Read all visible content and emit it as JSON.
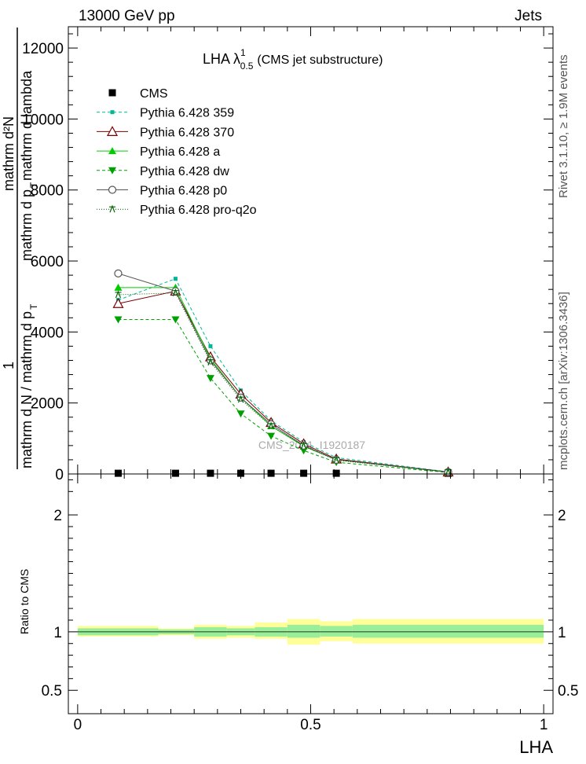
{
  "header": {
    "left": "13000 GeV pp",
    "right": "Jets"
  },
  "side_labels": {
    "rivet": "Rivet 3.1.10, ≥ 1.9M events",
    "mcplots": "mcplots.cern.ch [arXiv:1306.3436]"
  },
  "watermark": "CMS_2021_I1920187",
  "chart_data": [
    {
      "type": "line",
      "title_main": "LHA λ",
      "title_sup": "1",
      "title_sub": "0.5",
      "title_rest": "(CMS jet substructure)",
      "ylabel_parts": {
        "numerator_1": "mathrm d²N",
        "numerator_2": "mathrm d p",
        "numerator_2_sub": "T",
        "numerator_3": "mathrm d lambda",
        "denominator_1": "1",
        "denominator_2": "mathrm d N / mathrm d p",
        "denominator_2_sub": "T"
      },
      "xlabel": "LHA",
      "xlim": [
        -0.02,
        1.02
      ],
      "ylim": [
        0,
        12600
      ],
      "y_ticks": [
        0,
        2000,
        4000,
        6000,
        8000,
        10000,
        12000
      ],
      "y_tick_labels": [
        "0",
        "2000",
        "4000",
        "6000",
        "8000",
        "10000",
        "12000"
      ],
      "x_ticks": [
        0,
        0.5,
        1
      ],
      "x_tick_labels": [
        "0",
        "0.5",
        "1"
      ],
      "x": [
        0.087,
        0.21,
        0.285,
        0.35,
        0.415,
        0.485,
        0.555,
        0.795
      ],
      "series": [
        {
          "name": "CMS",
          "marker": "square-filled",
          "color": "#000000",
          "dash": "none",
          "values": [
            20,
            20,
            20,
            20,
            20,
            20,
            20,
            20
          ]
        },
        {
          "name": "Pythia 6.428 359",
          "marker": "square-small",
          "color": "#00b894",
          "dash": "4,3",
          "values": [
            4900,
            5500,
            3600,
            2350,
            1500,
            900,
            460,
            60
          ]
        },
        {
          "name": "Pythia 6.428 370",
          "marker": "triangle-up-open",
          "color": "#7a0000",
          "dash": "none",
          "values": [
            4800,
            5150,
            3300,
            2250,
            1450,
            850,
            420,
            55
          ]
        },
        {
          "name": "Pythia 6.428 a",
          "marker": "triangle-up-filled",
          "color": "#00cc00",
          "dash": "none",
          "values": [
            5250,
            5250,
            3250,
            2150,
            1350,
            780,
            400,
            50
          ]
        },
        {
          "name": "Pythia 6.428 dw",
          "marker": "triangle-down-filled",
          "color": "#00a000",
          "dash": "4,3",
          "values": [
            4350,
            4350,
            2700,
            1700,
            1070,
            660,
            330,
            40
          ]
        },
        {
          "name": "Pythia 6.428 p0",
          "marker": "circle-open",
          "color": "#555555",
          "dash": "none",
          "values": [
            5650,
            5150,
            3200,
            2150,
            1400,
            800,
            400,
            55
          ]
        },
        {
          "name": "Pythia 6.428 pro-q2o",
          "marker": "star",
          "color": "#006400",
          "dash": "1,2",
          "values": [
            5050,
            5100,
            3150,
            2100,
            1350,
            790,
            390,
            50
          ]
        }
      ]
    },
    {
      "type": "area",
      "ylabel": "Ratio to CMS",
      "ylim": [
        0.3,
        2.35
      ],
      "y_ticks": [
        0.5,
        1,
        2
      ],
      "y_tick_labels": [
        "0.5",
        "1",
        "2"
      ],
      "bins": [
        {
          "lo": 0.0,
          "hi": 0.173,
          "inner": [
            0.97,
            1.03
          ],
          "outer": [
            0.96,
            1.05
          ]
        },
        {
          "lo": 0.173,
          "hi": 0.25,
          "inner": [
            0.98,
            1.02
          ],
          "outer": [
            0.97,
            1.03
          ]
        },
        {
          "lo": 0.25,
          "hi": 0.32,
          "inner": [
            0.96,
            1.04
          ],
          "outer": [
            0.94,
            1.06
          ]
        },
        {
          "lo": 0.32,
          "hi": 0.38,
          "inner": [
            0.97,
            1.03
          ],
          "outer": [
            0.95,
            1.05
          ]
        },
        {
          "lo": 0.38,
          "hi": 0.45,
          "inner": [
            0.96,
            1.04
          ],
          "outer": [
            0.94,
            1.08
          ]
        },
        {
          "lo": 0.45,
          "hi": 0.52,
          "inner": [
            0.95,
            1.06
          ],
          "outer": [
            0.89,
            1.11
          ]
        },
        {
          "lo": 0.52,
          "hi": 0.59,
          "inner": [
            0.96,
            1.05
          ],
          "outer": [
            0.92,
            1.09
          ]
        },
        {
          "lo": 0.59,
          "hi": 1.0,
          "inner": [
            0.95,
            1.06
          ],
          "outer": [
            0.9,
            1.11
          ]
        }
      ]
    }
  ]
}
